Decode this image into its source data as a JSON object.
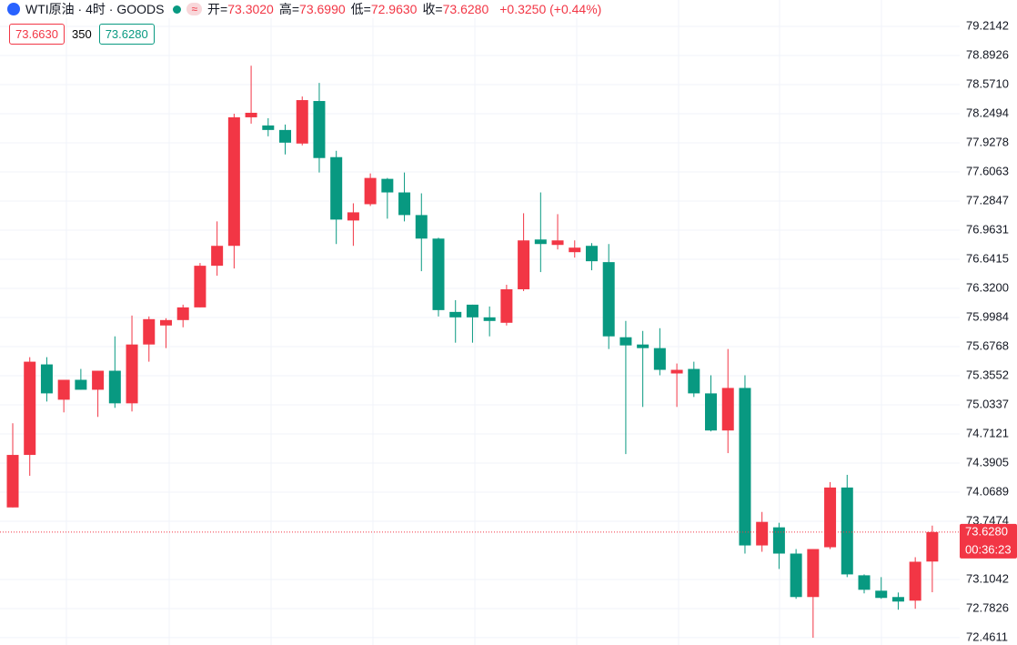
{
  "header": {
    "symbol": "WTI原油 · 4时 · GOODS",
    "stats": [
      {
        "label": "开=",
        "value": "73.3020"
      },
      {
        "label": "高=",
        "value": "73.6990"
      },
      {
        "label": "低=",
        "value": "72.9630"
      },
      {
        "label": "收=",
        "value": "73.6280"
      }
    ],
    "change": "+0.3250 (+0.44%)",
    "bid": "73.6630",
    "spread": "350",
    "ask": "73.6280"
  },
  "chart_data": {
    "type": "candlestick",
    "up_color": "#f23645",
    "down_color": "#089981",
    "ylim": [
      72.38,
      79.506
    ],
    "yticks": [
      79.2142,
      78.8926,
      {
        "value": 78.571,
        "label": "78.5710"
      },
      78.2494,
      77.9278,
      77.6063,
      77.2847,
      76.9631,
      76.6415,
      {
        "value": 76.32,
        "label": "76.3200"
      },
      75.9984,
      75.6768,
      75.3552,
      75.0337,
      74.7121,
      74.3905,
      74.0689,
      73.7474,
      73.1042,
      72.7826,
      72.4611
    ],
    "grid": true,
    "open": [
      73.9,
      74.48,
      75.48,
      75.09,
      75.31,
      75.2,
      75.41,
      75.05,
      75.7,
      75.91,
      75.97,
      76.11,
      76.57,
      76.79,
      78.21,
      78.12,
      78.07,
      77.92,
      78.39,
      77.77,
      77.07,
      77.25,
      77.53,
      77.38,
      77.13,
      76.87,
      76.06,
      76.14,
      76.0,
      75.94,
      76.31,
      76.86,
      76.8,
      76.72,
      76.79,
      76.61,
      75.78,
      75.7,
      75.66,
      75.38,
      75.43,
      75.16,
      74.75,
      75.22,
      73.48,
      73.68,
      73.39,
      72.91,
      73.46,
      74.12,
      73.15,
      72.98,
      72.91,
      72.87,
      73.302
    ],
    "high": [
      74.83,
      75.56,
      75.56,
      75.31,
      75.43,
      75.41,
      75.79,
      76.02,
      76.01,
      75.99,
      76.14,
      76.6,
      77.06,
      78.25,
      78.78,
      78.2,
      78.13,
      78.44,
      78.59,
      77.84,
      77.26,
      77.59,
      77.54,
      77.6,
      77.37,
      76.88,
      76.19,
      76.14,
      76.12,
      76.36,
      77.15,
      77.38,
      77.14,
      76.85,
      76.82,
      76.81,
      75.96,
      75.85,
      75.88,
      75.49,
      75.51,
      75.36,
      75.65,
      75.36,
      73.85,
      73.73,
      73.44,
      73.44,
      74.18,
      74.26,
      73.16,
      73.13,
      72.96,
      73.35,
      73.699
    ],
    "low": [
      73.9,
      74.25,
      75.07,
      74.95,
      75.2,
      74.9,
      75.0,
      74.96,
      75.51,
      75.66,
      75.89,
      76.11,
      76.46,
      76.54,
      78.14,
      78.0,
      77.8,
      77.9,
      77.6,
      76.81,
      76.79,
      77.23,
      77.09,
      77.06,
      76.51,
      76.01,
      75.72,
      75.72,
      75.79,
      75.91,
      76.29,
      76.5,
      76.75,
      76.66,
      76.52,
      75.65,
      74.49,
      75.01,
      75.36,
      75.01,
      75.12,
      74.74,
      74.5,
      73.39,
      73.41,
      73.22,
      72.89,
      72.46,
      73.44,
      73.13,
      72.95,
      72.89,
      72.77,
      72.78,
      72.963
    ],
    "close": [
      74.48,
      75.51,
      75.16,
      75.31,
      75.2,
      75.41,
      75.05,
      75.7,
      75.98,
      75.97,
      76.11,
      76.57,
      76.79,
      78.21,
      78.26,
      78.07,
      77.93,
      78.4,
      77.76,
      77.08,
      77.16,
      77.54,
      77.38,
      77.13,
      76.87,
      76.08,
      76.0,
      76.0,
      75.96,
      76.31,
      76.85,
      76.81,
      76.85,
      76.77,
      76.62,
      75.79,
      75.69,
      75.66,
      75.42,
      75.42,
      75.16,
      74.75,
      75.22,
      73.48,
      73.74,
      73.39,
      72.91,
      73.44,
      74.12,
      73.16,
      72.99,
      72.9,
      72.86,
      73.3,
      73.628
    ],
    "last_price": {
      "value": 73.628,
      "label": "73.6280"
    },
    "countdown": "00:36:23"
  }
}
